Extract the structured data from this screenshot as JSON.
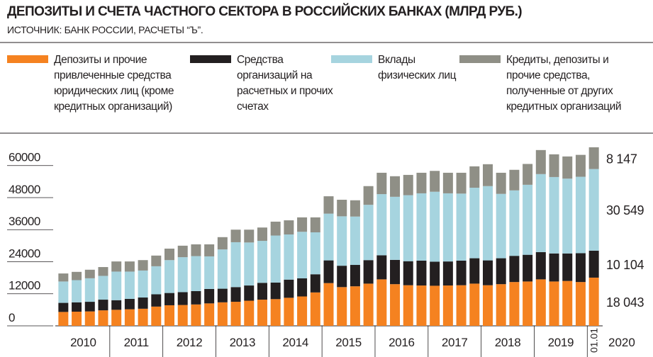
{
  "chart_data": {
    "type": "stacked_bar",
    "title": "ДЕПОЗИТЫ И СЧЕТА ЧАСТНОГО СЕКТОРА В РОССИЙСКИХ БАНКАХ (МЛРД РУБ.)",
    "subtitle": "ИСТОЧНИК: БАНК РОССИИ, РАСЧЕТЫ “Ъ”.",
    "categories": [
      "2010",
      "2010",
      "2010",
      "2010",
      "2011",
      "2011",
      "2011",
      "2011",
      "2012",
      "2012",
      "2012",
      "2012",
      "2013",
      "2013",
      "2013",
      "2013",
      "2014",
      "2014",
      "2014",
      "2014",
      "2015",
      "2015",
      "2015",
      "2015",
      "2016",
      "2016",
      "2016",
      "2016",
      "2017",
      "2017",
      "2017",
      "2017",
      "2018",
      "2018",
      "2018",
      "2018",
      "2019",
      "2019",
      "2019",
      "2019",
      "2020"
    ],
    "last_date_label": "01.01",
    "series": [
      {
        "name": "Депозиты и прочие привлеченные средства юридических лиц (кроме кредитных организаций)",
        "color": "#f58220",
        "values": [
          5200,
          5300,
          5400,
          5800,
          6000,
          6200,
          6400,
          7200,
          7700,
          7800,
          8000,
          8400,
          8800,
          9000,
          9400,
          9800,
          10000,
          10500,
          11000,
          12500,
          16000,
          14500,
          14800,
          15800,
          17400,
          15600,
          15200,
          15100,
          15000,
          15100,
          15200,
          15800,
          15200,
          15600,
          16400,
          16600,
          17400,
          16600,
          16800,
          16400,
          18043
        ],
        "value_labels": [
          null,
          null,
          null,
          null,
          null,
          null,
          null,
          null,
          null,
          null,
          null,
          null,
          null,
          null,
          null,
          null,
          null,
          null,
          null,
          null,
          null,
          null,
          null,
          null,
          null,
          null,
          null,
          null,
          null,
          null,
          null,
          null,
          null,
          null,
          null,
          null,
          null,
          null,
          null,
          null,
          "18 043"
        ]
      },
      {
        "name": "Средства организаций на расчетных и прочих счетах",
        "color": "#231f20",
        "values": [
          3400,
          3500,
          3600,
          4000,
          3600,
          3900,
          4200,
          4600,
          4600,
          4800,
          5000,
          5400,
          5100,
          5500,
          5700,
          6300,
          6200,
          6800,
          6800,
          6800,
          8500,
          8000,
          8000,
          8800,
          9000,
          9100,
          9000,
          9300,
          9000,
          9000,
          9200,
          9500,
          9300,
          9700,
          9800,
          10000,
          10200,
          10500,
          10300,
          10800,
          10104
        ],
        "value_labels": [
          null,
          null,
          null,
          null,
          null,
          null,
          null,
          null,
          null,
          null,
          null,
          null,
          null,
          null,
          null,
          null,
          null,
          null,
          null,
          null,
          null,
          null,
          null,
          null,
          null,
          null,
          null,
          null,
          null,
          null,
          null,
          null,
          null,
          null,
          null,
          null,
          null,
          null,
          null,
          null,
          "10 104"
        ]
      },
      {
        "name": "Вклады физических лиц",
        "color": "#a6d4df",
        "values": [
          8000,
          8300,
          8800,
          8900,
          10700,
          10200,
          10100,
          10500,
          12300,
          13100,
          13100,
          12200,
          14700,
          16800,
          16100,
          15700,
          17600,
          16900,
          17400,
          15700,
          17500,
          18500,
          18100,
          20700,
          22900,
          23600,
          24700,
          25200,
          26200,
          25500,
          25100,
          26400,
          27800,
          24100,
          24500,
          26200,
          29200,
          28600,
          28000,
          28600,
          30549
        ],
        "value_labels": [
          null,
          null,
          null,
          null,
          null,
          null,
          null,
          null,
          null,
          null,
          null,
          null,
          null,
          null,
          null,
          null,
          null,
          null,
          null,
          null,
          null,
          null,
          null,
          null,
          null,
          null,
          null,
          null,
          null,
          null,
          null,
          null,
          null,
          null,
          null,
          null,
          null,
          null,
          null,
          null,
          "30 549"
        ]
      },
      {
        "name": "Кредиты, депозиты и  прочие средства, полученные от других кредитных организаций",
        "color": "#8f8f86",
        "values": [
          3000,
          3100,
          3200,
          3300,
          3800,
          3800,
          3900,
          4000,
          4300,
          4300,
          4400,
          4500,
          4600,
          4700,
          4800,
          5000,
          5200,
          5300,
          5400,
          5600,
          6500,
          6200,
          6100,
          7000,
          8000,
          7700,
          7600,
          7700,
          7800,
          7700,
          7800,
          8000,
          8200,
          7900,
          7700,
          7800,
          9000,
          8500,
          8300,
          8200,
          8147
        ],
        "value_labels": [
          null,
          null,
          null,
          null,
          null,
          null,
          null,
          null,
          null,
          null,
          null,
          null,
          null,
          null,
          null,
          null,
          null,
          null,
          null,
          null,
          null,
          null,
          null,
          null,
          null,
          null,
          null,
          null,
          null,
          null,
          null,
          null,
          null,
          null,
          null,
          null,
          null,
          null,
          null,
          null,
          "8 147"
        ]
      }
    ],
    "ylim": [
      0,
      70000
    ],
    "yticks": [
      0,
      12000,
      24000,
      36000,
      48000,
      60000
    ]
  }
}
